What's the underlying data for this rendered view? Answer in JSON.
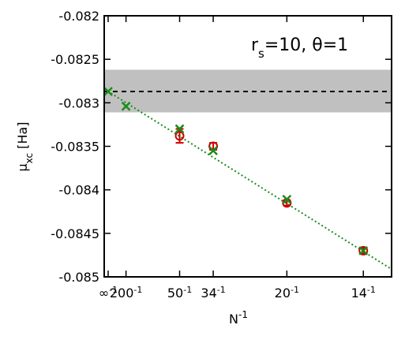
{
  "chart_data": {
    "type": "scatter",
    "annotation": {
      "base": "r",
      "sub": "s",
      "rest": "=10, θ=1"
    },
    "ylabel": {
      "base": "μ",
      "sub": "xc",
      "rest": " [Ha]"
    },
    "xlabel": {
      "base": "N",
      "sup": "-1"
    },
    "xlim": [
      -0.0011,
      0.0793
    ],
    "ylim": [
      -0.085,
      -0.082
    ],
    "y_ticks": [
      {
        "value": -0.085,
        "label": "-0.085"
      },
      {
        "value": -0.0845,
        "label": "-0.0845"
      },
      {
        "value": -0.084,
        "label": "-0.084"
      },
      {
        "value": -0.0835,
        "label": "-0.0835"
      },
      {
        "value": -0.083,
        "label": "-0.083"
      },
      {
        "value": -0.0825,
        "label": "-0.0825"
      },
      {
        "value": -0.082,
        "label": "-0.082"
      }
    ],
    "x_ticks": [
      {
        "value": 0,
        "base": "∞",
        "sup": "-1"
      },
      {
        "value": 0.005,
        "base": "200",
        "sup": "-1"
      },
      {
        "value": 0.02,
        "base": "50",
        "sup": "-1"
      },
      {
        "value": 0.0294,
        "base": "34",
        "sup": "-1"
      },
      {
        "value": 0.05,
        "base": "20",
        "sup": "-1"
      },
      {
        "value": 0.0714,
        "base": "14",
        "sup": "-1"
      }
    ],
    "reference_band": {
      "y": -0.08287,
      "ymin": -0.08311,
      "ymax": -0.08262,
      "color": "#c0c0c0",
      "line_color": "#000000"
    },
    "series": [
      {
        "marker": "circle",
        "color": "#cc0000",
        "points": [
          {
            "x": 0.02,
            "y": -0.08338,
            "err": 8e-05
          },
          {
            "x": 0.0294,
            "y": -0.0835,
            "err": 4e-05
          },
          {
            "x": 0.05,
            "y": -0.08415,
            "err": 3e-05
          },
          {
            "x": 0.0714,
            "y": -0.0847,
            "err": 3e-05
          }
        ]
      },
      {
        "marker": "x",
        "color": "#1a8c1a",
        "points": [
          {
            "x": 0.0,
            "y": -0.08287
          },
          {
            "x": 0.005,
            "y": -0.08304
          },
          {
            "x": 0.02,
            "y": -0.0833
          },
          {
            "x": 0.0294,
            "y": -0.08355
          },
          {
            "x": 0.05,
            "y": -0.08411
          },
          {
            "x": 0.0714,
            "y": -0.0847
          }
        ]
      }
    ],
    "fit_line": {
      "color": "#1a8c1a",
      "intercept": -0.08287,
      "slope": -0.02575,
      "style": "dotted"
    },
    "grid": false
  }
}
